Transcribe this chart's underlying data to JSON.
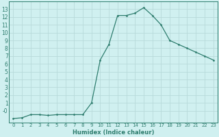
{
  "x": [
    0,
    1,
    2,
    3,
    4,
    5,
    6,
    7,
    8,
    9,
    10,
    11,
    12,
    13,
    14,
    15,
    16,
    17,
    18,
    19,
    20,
    21,
    22,
    23
  ],
  "y": [
    -1.0,
    -0.9,
    -0.5,
    -0.5,
    -0.6,
    -0.5,
    -0.5,
    -0.5,
    -0.5,
    1.0,
    6.5,
    8.5,
    12.2,
    12.2,
    12.5,
    13.2,
    12.2,
    11.0,
    9.0,
    8.5,
    8.0,
    7.5,
    7.0,
    6.5
  ],
  "line_color": "#2e7d6e",
  "marker": "D",
  "marker_size": 1.5,
  "linewidth": 0.9,
  "xlabel": "Humidex (Indice chaleur)",
  "xlabel_fontsize": 6.0,
  "bg_color": "#d0f0f0",
  "grid_color": "#b8dada",
  "tick_color": "#2e7d6e",
  "xlim": [
    -0.5,
    23.5
  ],
  "ylim": [
    -1.5,
    14.0
  ],
  "yticks": [
    0,
    1,
    2,
    3,
    4,
    5,
    6,
    7,
    8,
    9,
    10,
    11,
    12,
    13
  ],
  "ytick_labels": [
    "-0",
    "1",
    "2",
    "3",
    "4",
    "5",
    "6",
    "7",
    "8",
    "9",
    "10",
    "11",
    "12",
    "13"
  ],
  "xticks": [
    0,
    1,
    2,
    3,
    4,
    5,
    6,
    7,
    8,
    9,
    10,
    11,
    12,
    13,
    14,
    15,
    16,
    17,
    18,
    19,
    20,
    21,
    22,
    23
  ],
  "tick_fontsize": 5.5,
  "xtick_fontsize": 5.0
}
